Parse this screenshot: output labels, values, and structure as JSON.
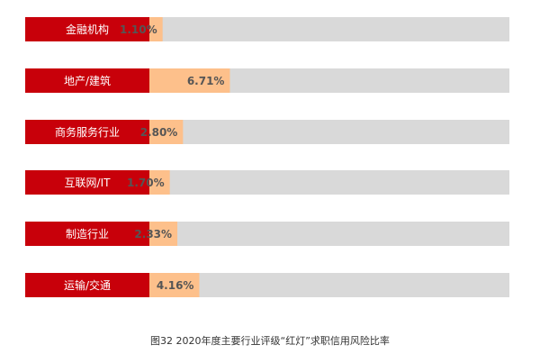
{
  "chart_data": {
    "type": "bar",
    "orientation": "horizontal",
    "categories": [
      "金融机构",
      "地产/建筑",
      "商务服务行业",
      "互联网/IT",
      "制造行业",
      "运输/交通"
    ],
    "values": [
      1.1,
      6.71,
      2.8,
      1.7,
      2.33,
      4.16
    ],
    "value_labels": [
      "1.10%",
      "6.71%",
      "2.80%",
      "1.70%",
      "2.33%",
      "4.16%"
    ],
    "unit": "%",
    "xlim": [
      0,
      30
    ],
    "grid": false,
    "legend": "none",
    "colors": {
      "label_bg": "#c8000a",
      "value_bar": "#fdc08b",
      "track": "#d9d9d9",
      "label_text": "#ffffff",
      "value_text": "#555555"
    }
  },
  "caption": "图32   2020年度主要行业评级“红灯”求职信用风险比率"
}
